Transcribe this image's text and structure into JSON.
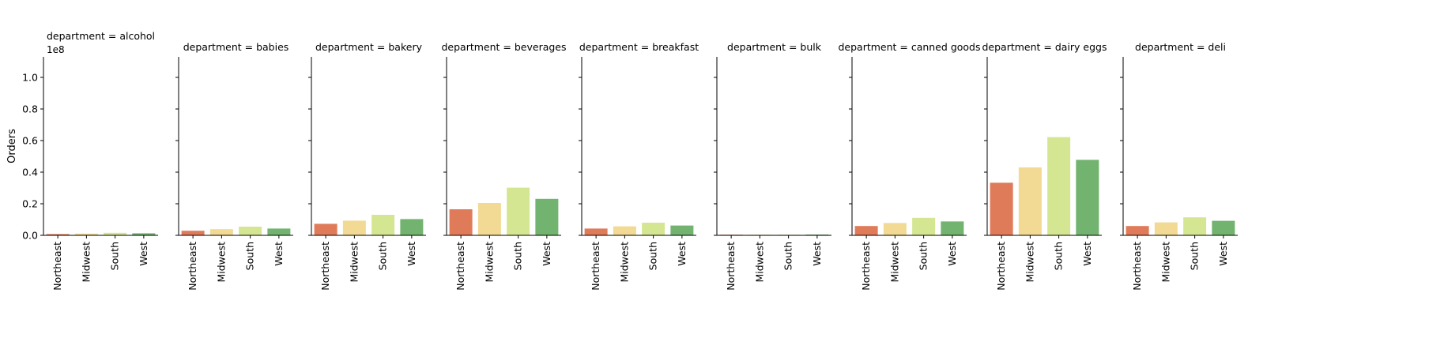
{
  "chart_data": {
    "type": "bar",
    "facet_prefix": "department = ",
    "facets": [
      "alcohol",
      "babies",
      "bakery",
      "beverages",
      "breakfast",
      "bulk",
      "canned goods",
      "dairy eggs",
      "deli"
    ],
    "categories": [
      "Northeast",
      "Midwest",
      "South",
      "West"
    ],
    "colors": [
      "#e07b5a",
      "#f2d994",
      "#d5e693",
      "#72b36f"
    ],
    "ylabel": "Orders",
    "y_scale_label": "1e8",
    "ylim": [
      0,
      1.13
    ],
    "yticks": [
      "0.0",
      "0.2",
      "0.4",
      "0.6",
      "0.8",
      "1.0"
    ],
    "values": [
      [
        0.008,
        0.011,
        0.016,
        0.013
      ],
      [
        0.029,
        0.039,
        0.055,
        0.043
      ],
      [
        0.073,
        0.093,
        0.13,
        0.103
      ],
      [
        0.165,
        0.205,
        0.302,
        0.231
      ],
      [
        0.043,
        0.057,
        0.08,
        0.062
      ],
      [
        0.004,
        0.004,
        0.004,
        0.005
      ],
      [
        0.059,
        0.078,
        0.111,
        0.088
      ],
      [
        0.333,
        0.43,
        0.622,
        0.478
      ],
      [
        0.059,
        0.082,
        0.114,
        0.092
      ]
    ]
  }
}
